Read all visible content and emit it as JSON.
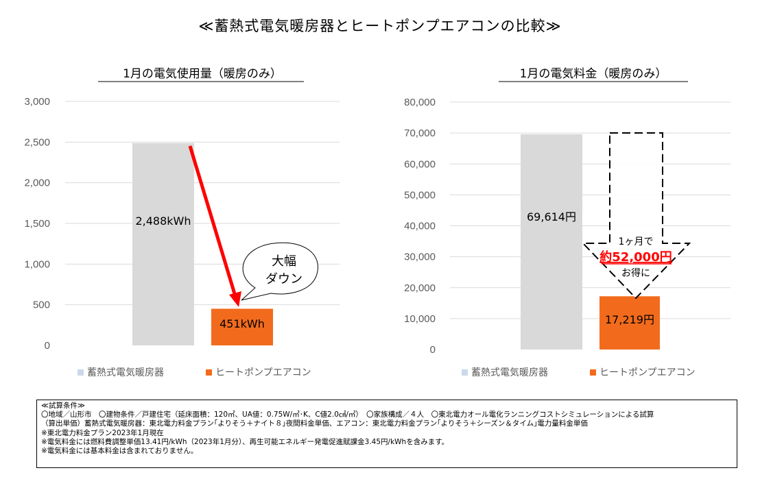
{
  "title": "≪蓄熱式電気暖房器とヒートポンプエアコンの比較≫",
  "colors": {
    "thermal_storage": "#d9d9d9",
    "heat_pump": "#f26b1d",
    "legend_thermal": "#c9d9ea",
    "arrow_red": "#ff0000",
    "grid": "#d9d9d9",
    "axis_text": "#595959"
  },
  "chart_data": [
    {
      "type": "bar",
      "title": "1月の電気使用量（暖房のみ）",
      "categories": [
        "蓄熱式電気暖房器",
        "ヒートポンプエアコン"
      ],
      "series": [
        {
          "name": "蓄熱式電気暖房器",
          "values": [
            2488,
            null
          ],
          "data_label": "2,488kWh"
        },
        {
          "name": "ヒートポンプエアコン",
          "values": [
            null,
            451
          ],
          "data_label": "451kWh"
        }
      ],
      "ylim": [
        0,
        3000
      ],
      "yticks": [
        0,
        500,
        1000,
        1500,
        2000,
        2500,
        3000
      ],
      "ytick_labels": [
        "0",
        "500",
        "1,000",
        "1,500",
        "2,000",
        "2,500",
        "3,000"
      ],
      "grid": true,
      "legend": "bottom",
      "annotation": {
        "callout_line1": "大幅",
        "callout_line2": "ダウン"
      }
    },
    {
      "type": "bar",
      "title": "1月の電気料金（暖房のみ）",
      "categories": [
        "蓄熱式電気暖房器",
        "ヒートポンプエアコン"
      ],
      "series": [
        {
          "name": "蓄熱式電気暖房器",
          "values": [
            69614,
            null
          ],
          "data_label": "69,614円"
        },
        {
          "name": "ヒートポンプエアコン",
          "values": [
            null,
            17219
          ],
          "data_label": "17,219円"
        }
      ],
      "ylim": [
        0,
        80000
      ],
      "yticks": [
        0,
        10000,
        20000,
        30000,
        40000,
        50000,
        60000,
        70000,
        80000
      ],
      "ytick_labels": [
        "0",
        "10,000",
        "20,000",
        "30,000",
        "40,000",
        "50,000",
        "60,000",
        "70,000",
        "80,000"
      ],
      "grid": true,
      "legend": "bottom",
      "annotation": {
        "line1": "1ヶ月で",
        "line2": "約52,000円",
        "line3": "お得に"
      }
    }
  ],
  "notes": {
    "header": "≪試算条件≫",
    "lines": [
      "〇地域／山形市　〇建物条件／戸建住宅（延床面積：120㎡、UA値：0.75W/㎡･K、C値2.0㎠/㎡）　〇家族構成／４人　〇東北電力オール電化ランニングコストシミュレーションによる試算",
      "（算出単価）蓄熱式電気暖房器：東北電力料金プラン｢よりそう＋ナイト８｣夜間料金単価、エアコン：東北電力料金プラン｢よりそう＋シーズン＆タイム｣電力量料金単価",
      "※東北電力料金プラン2023年1月現在",
      "※電気料金には燃料費調整単価13.41円/kWh（2023年1月分）、再生可能エネルギー発電促進賦課金3.45円/kWhを含みます。",
      "※電気料金には基本料金は含まれておりません。"
    ]
  }
}
